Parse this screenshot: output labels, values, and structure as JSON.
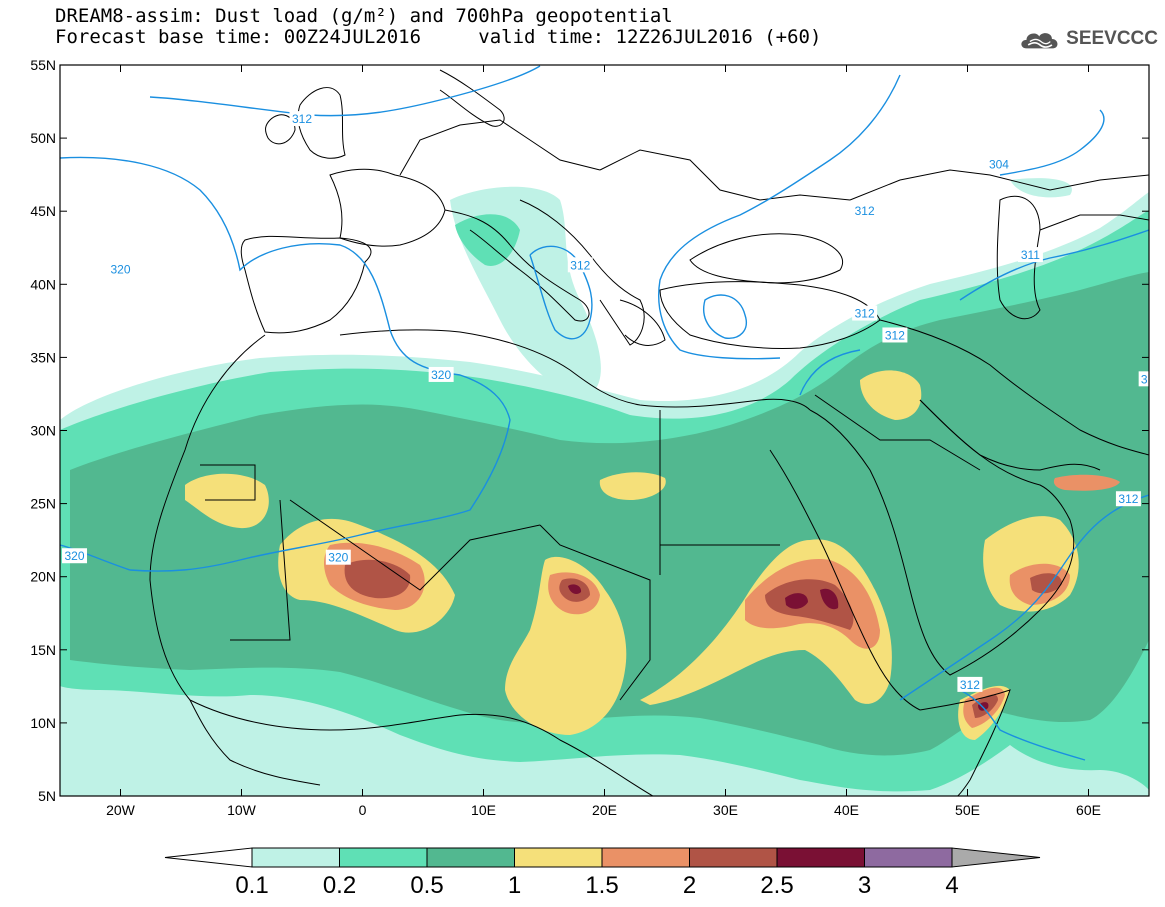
{
  "header": {
    "line1": "DREAM8-assim: Dust load (g/m²) and 700hPa geopotential",
    "line2_left": "Forecast base time: 00Z24JUL2016",
    "line2_right": "valid time: 12Z26JUL2016 (+60)"
  },
  "logo": {
    "text": "SEEVCCC",
    "icon": "cloud-icon",
    "color": "#555555"
  },
  "map": {
    "lon_range": [
      -25,
      65
    ],
    "lat_range": [
      5,
      55
    ],
    "lon_ticks": [
      {
        "value": -20,
        "label": "20W"
      },
      {
        "value": -10,
        "label": "10W"
      },
      {
        "value": 0,
        "label": "0"
      },
      {
        "value": 10,
        "label": "10E"
      },
      {
        "value": 20,
        "label": "20E"
      },
      {
        "value": 30,
        "label": "30E"
      },
      {
        "value": 40,
        "label": "40E"
      },
      {
        "value": 50,
        "label": "50E"
      },
      {
        "value": 60,
        "label": "60E"
      }
    ],
    "lat_ticks": [
      {
        "value": 5,
        "label": "5N"
      },
      {
        "value": 10,
        "label": "10N"
      },
      {
        "value": 15,
        "label": "15N"
      },
      {
        "value": 20,
        "label": "20N"
      },
      {
        "value": 25,
        "label": "25N"
      },
      {
        "value": 30,
        "label": "30N"
      },
      {
        "value": 35,
        "label": "35N"
      },
      {
        "value": 40,
        "label": "40N"
      },
      {
        "value": 45,
        "label": "45N"
      },
      {
        "value": 50,
        "label": "50N"
      },
      {
        "value": 55,
        "label": "55N"
      }
    ],
    "contour_color": "#1a8fe0",
    "contour_labels": [
      {
        "text": "312",
        "lon": -5,
        "lat": 51.3
      },
      {
        "text": "304",
        "lon": 52.6,
        "lat": 48.2
      },
      {
        "text": "312",
        "lon": 41.5,
        "lat": 45
      },
      {
        "text": "320",
        "lon": -20,
        "lat": 41
      },
      {
        "text": "312",
        "lon": 18,
        "lat": 41.3
      },
      {
        "text": "311",
        "lon": 55.2,
        "lat": 42
      },
      {
        "text": "312",
        "lon": 41.5,
        "lat": 38
      },
      {
        "text": "312",
        "lon": 44,
        "lat": 36.5
      },
      {
        "text": "3",
        "lon": 64.6,
        "lat": 33.5
      },
      {
        "text": "320",
        "lon": 6.5,
        "lat": 33.8
      },
      {
        "text": "312",
        "lon": 63.3,
        "lat": 25.3
      },
      {
        "text": "320",
        "lon": -2,
        "lat": 21.3
      },
      {
        "text": "320",
        "lon": -23.8,
        "lat": 21.4
      },
      {
        "text": "312",
        "lon": 50.2,
        "lat": 12.6
      }
    ]
  },
  "colorbar": {
    "bins": [
      {
        "color": "#bff2e6"
      },
      {
        "color": "#5fe0b5"
      },
      {
        "color": "#52b890"
      },
      {
        "color": "#f5e07a"
      },
      {
        "color": "#ea9166"
      },
      {
        "color": "#b05446"
      },
      {
        "color": "#7a1034"
      },
      {
        "color": "#8e6aa0"
      }
    ],
    "low_arrow_color": "#ffffff",
    "high_arrow_color": "#aaaaaa",
    "labels": [
      "0.1",
      "0.2",
      "0.5",
      "1",
      "1.5",
      "2",
      "2.5",
      "3",
      "4"
    ]
  },
  "dust_field_colors": {
    "very_low": "#bff2e6",
    "low": "#5fe0b5",
    "medium": "#52b890",
    "high": "#f5e07a",
    "very_high": "#ea9166",
    "extreme": "#b05446",
    "peak": "#7a1034"
  }
}
